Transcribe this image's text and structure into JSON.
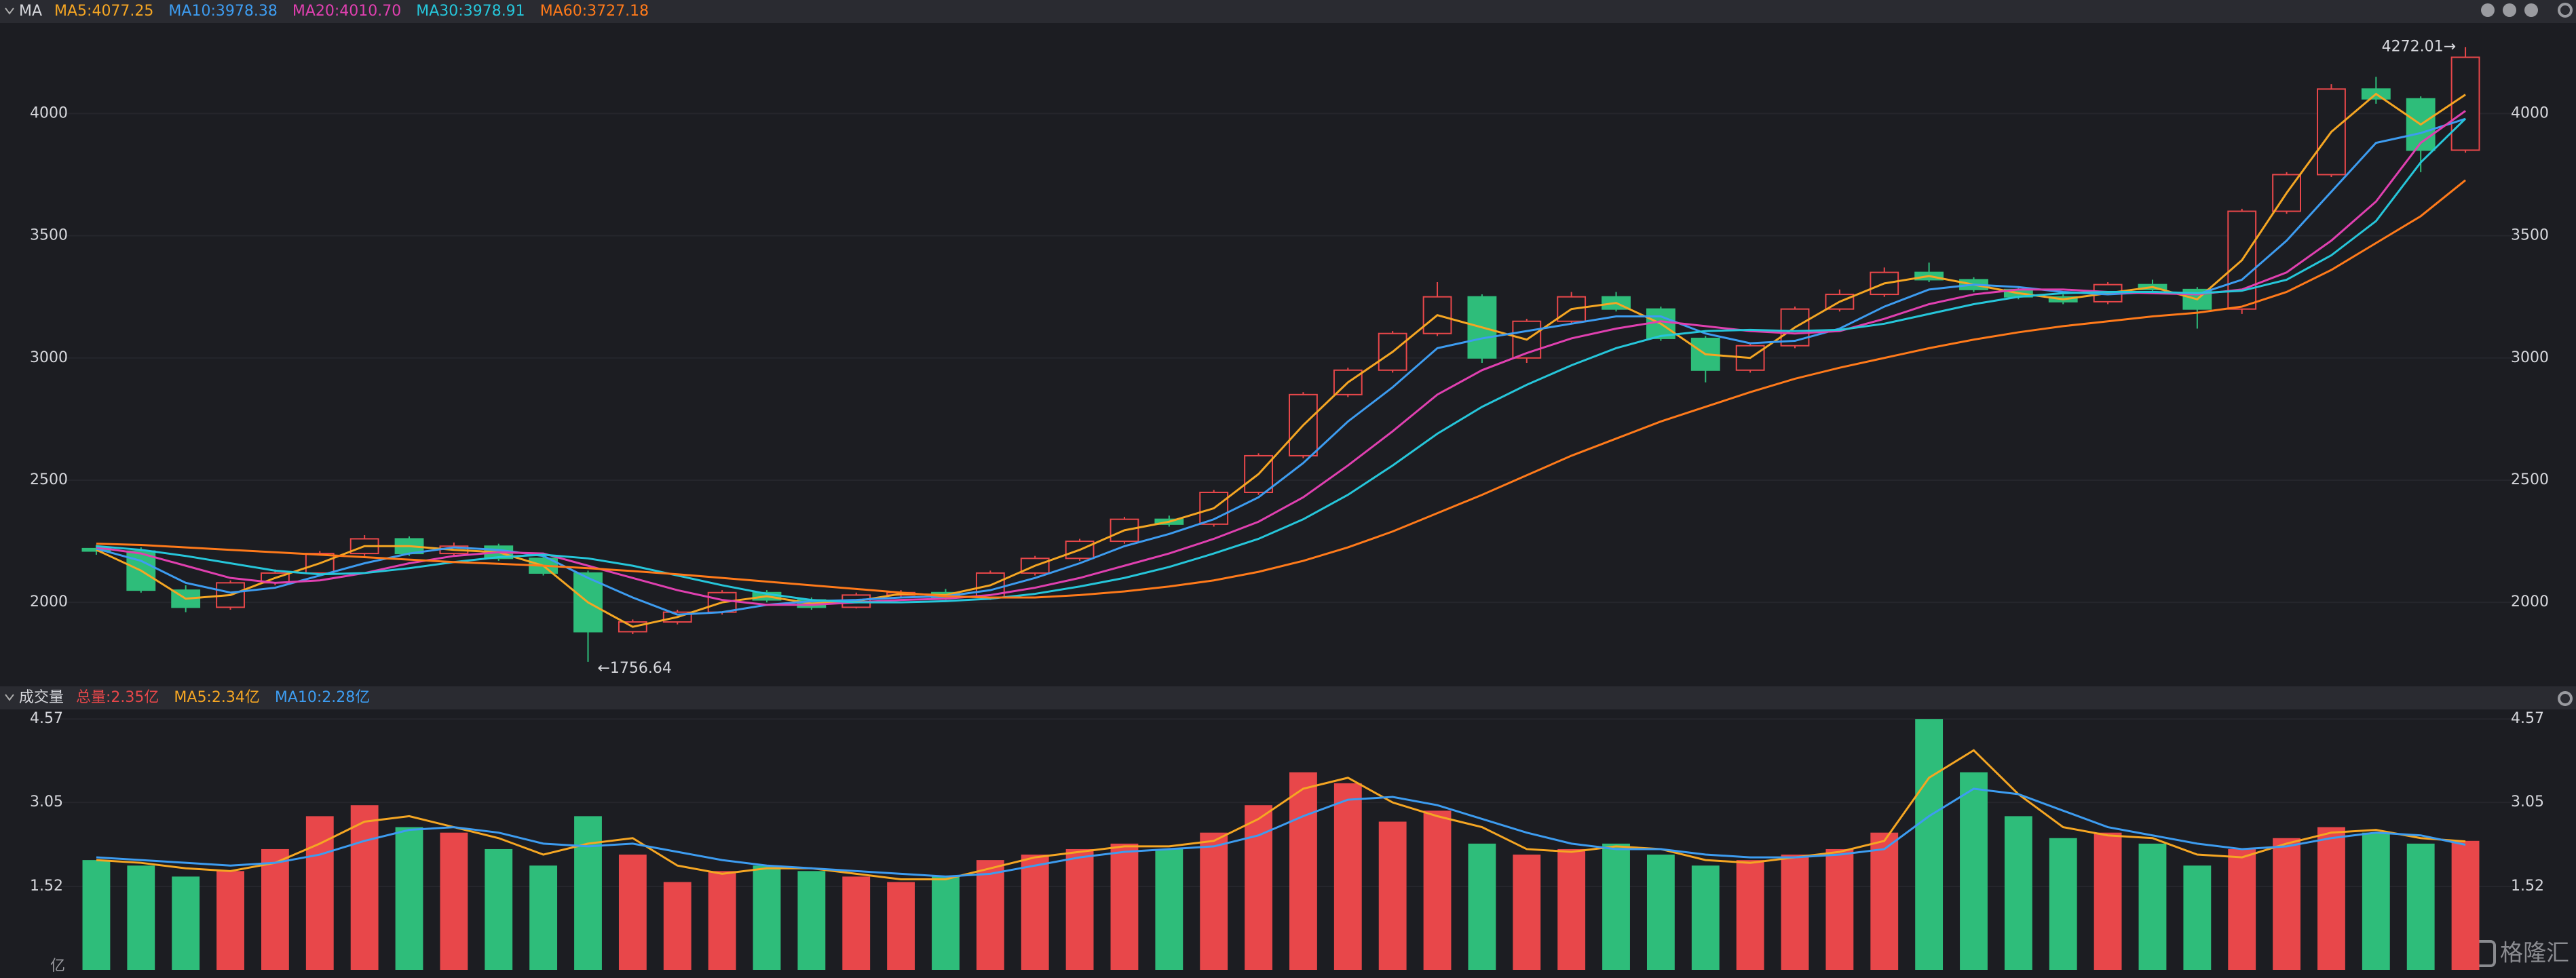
{
  "chart_data": {
    "type": "candlestick",
    "title": "MA",
    "ylim": [
      1662,
      4370
    ],
    "yticks": [
      2000,
      2500,
      3000,
      3500,
      4000
    ],
    "grid": true,
    "up_color": "#e8474a",
    "down_color": "#2ebd7a",
    "candles": {
      "open": [
        2220,
        2210,
        2050,
        1980,
        2080,
        2120,
        2200,
        2260,
        2200,
        2230,
        2180,
        2120,
        1880,
        1920,
        1960,
        2040,
        2010,
        1980,
        2030,
        2040,
        2020,
        2120,
        2180,
        2250,
        2340,
        2320,
        2450,
        2600,
        2850,
        2950,
        3100,
        3250,
        3000,
        3150,
        3250,
        3200,
        3080,
        2950,
        3050,
        3200,
        3260,
        3350,
        3320,
        3280,
        3250,
        3230,
        3300,
        3280,
        3200,
        3600,
        3750,
        4100,
        4060,
        3850
      ],
      "high": [
        2235,
        2225,
        2070,
        2090,
        2135,
        2210,
        2275,
        2270,
        2245,
        2240,
        2190,
        2130,
        1930,
        1970,
        2050,
        2050,
        2020,
        2040,
        2050,
        2055,
        2130,
        2190,
        2260,
        2350,
        2355,
        2460,
        2610,
        2860,
        2960,
        3110,
        3310,
        3260,
        3160,
        3270,
        3270,
        3210,
        3090,
        3060,
        3210,
        3280,
        3370,
        3390,
        3330,
        3290,
        3260,
        3310,
        3320,
        3290,
        3610,
        3760,
        4120,
        4150,
        4070,
        4272.01
      ],
      "low": [
        2195,
        2040,
        1960,
        1970,
        2070,
        2110,
        2190,
        2190,
        2190,
        2170,
        2110,
        1756.64,
        1870,
        1910,
        1950,
        2000,
        1970,
        1975,
        2020,
        2010,
        2010,
        2110,
        2170,
        2240,
        2310,
        2310,
        2440,
        2590,
        2840,
        2940,
        3090,
        2980,
        2980,
        3140,
        3190,
        3070,
        2900,
        2940,
        3040,
        3190,
        3250,
        3310,
        3270,
        3240,
        3220,
        3220,
        3270,
        3120,
        3180,
        3590,
        3740,
        4040,
        3760,
        3840
      ],
      "close": [
        2210,
        2050,
        1980,
        2080,
        2120,
        2200,
        2260,
        2200,
        2230,
        2180,
        2120,
        1880,
        1920,
        1960,
        2040,
        2010,
        1980,
        2030,
        2040,
        2020,
        2120,
        2180,
        2250,
        2340,
        2320,
        2450,
        2600,
        2850,
        2950,
        3100,
        3250,
        3000,
        3150,
        3250,
        3200,
        3080,
        2950,
        3050,
        3200,
        3260,
        3350,
        3320,
        3280,
        3250,
        3230,
        3300,
        3280,
        3200,
        3600,
        3750,
        4100,
        4060,
        3850,
        4230
      ]
    },
    "series": [
      {
        "label": "MA5:4077.25",
        "color": "#f5a623",
        "values": [
          2215,
          2130,
          2015,
          2030,
          2100,
          2160,
          2230,
          2230,
          2215,
          2205,
          2150,
          2000,
          1900,
          1940,
          2000,
          2025,
          1995,
          2005,
          2035,
          2030,
          2070,
          2150,
          2215,
          2295,
          2330,
          2385,
          2525,
          2725,
          2900,
          3025,
          3175,
          3125,
          3075,
          3200,
          3225,
          3140,
          3015,
          3000,
          3125,
          3230,
          3305,
          3335,
          3300,
          3265,
          3240,
          3265,
          3290,
          3240,
          3400,
          3675,
          3925,
          4080,
          3955,
          4077.25
        ]
      },
      {
        "label": "MA10:3978.38",
        "color": "#3d9cf0",
        "values": [
          2220,
          2170,
          2080,
          2040,
          2060,
          2110,
          2160,
          2200,
          2225,
          2215,
          2190,
          2100,
          2020,
          1950,
          1960,
          1990,
          2005,
          2010,
          2020,
          2025,
          2050,
          2100,
          2160,
          2230,
          2280,
          2340,
          2430,
          2570,
          2740,
          2880,
          3040,
          3080,
          3110,
          3140,
          3170,
          3170,
          3100,
          3060,
          3070,
          3120,
          3210,
          3280,
          3300,
          3290,
          3270,
          3260,
          3270,
          3260,
          3320,
          3480,
          3680,
          3880,
          3920,
          3978.38
        ]
      },
      {
        "label": "MA20:4010.70",
        "color": "#e040b0",
        "values": [
          2225,
          2200,
          2150,
          2100,
          2080,
          2090,
          2120,
          2160,
          2190,
          2205,
          2200,
          2150,
          2100,
          2050,
          2010,
          1990,
          1990,
          2000,
          2010,
          2015,
          2030,
          2060,
          2100,
          2150,
          2200,
          2260,
          2330,
          2430,
          2560,
          2700,
          2850,
          2950,
          3020,
          3080,
          3120,
          3150,
          3130,
          3110,
          3100,
          3110,
          3160,
          3220,
          3260,
          3280,
          3280,
          3270,
          3265,
          3260,
          3280,
          3350,
          3480,
          3640,
          3880,
          4010.7
        ]
      },
      {
        "label": "MA30:3978.91",
        "color": "#26c6da",
        "values": [
          2230,
          2215,
          2190,
          2160,
          2130,
          2115,
          2120,
          2140,
          2165,
          2185,
          2195,
          2180,
          2150,
          2110,
          2070,
          2035,
          2010,
          2000,
          2000,
          2005,
          2015,
          2035,
          2065,
          2100,
          2145,
          2200,
          2260,
          2340,
          2440,
          2560,
          2690,
          2800,
          2890,
          2970,
          3040,
          3090,
          3110,
          3115,
          3110,
          3115,
          3140,
          3180,
          3220,
          3250,
          3265,
          3270,
          3270,
          3265,
          3275,
          3320,
          3420,
          3560,
          3800,
          3978.91
        ]
      },
      {
        "label": "MA60:3727.18",
        "color": "#ff7a1a",
        "values": [
          2240,
          2235,
          2225,
          2215,
          2205,
          2195,
          2185,
          2175,
          2165,
          2158,
          2150,
          2140,
          2128,
          2115,
          2100,
          2085,
          2070,
          2055,
          2040,
          2025,
          2020,
          2020,
          2030,
          2045,
          2065,
          2090,
          2125,
          2170,
          2225,
          2290,
          2365,
          2440,
          2520,
          2600,
          2670,
          2740,
          2800,
          2860,
          2915,
          2960,
          3000,
          3040,
          3075,
          3105,
          3130,
          3150,
          3170,
          3185,
          3210,
          3270,
          3360,
          3470,
          3580,
          3727.18
        ]
      }
    ],
    "annotations": [
      {
        "text": "4272.01→"
      },
      {
        "text": "←1756.64"
      }
    ],
    "volume": {
      "title": "成交量",
      "total_label": "总量:2.35亿",
      "total_color": "#e8474a",
      "unit": "亿",
      "ylim": [
        0,
        4.72
      ],
      "yticks": [
        1.52,
        3.05,
        4.57
      ],
      "values": [
        2.0,
        1.9,
        1.7,
        1.8,
        2.2,
        2.8,
        3.0,
        2.6,
        2.5,
        2.2,
        1.9,
        2.8,
        2.1,
        1.6,
        1.8,
        1.9,
        1.8,
        1.7,
        1.6,
        1.7,
        2.0,
        2.1,
        2.2,
        2.3,
        2.2,
        2.5,
        3.0,
        3.6,
        3.4,
        2.7,
        2.9,
        2.3,
        2.1,
        2.2,
        2.3,
        2.1,
        1.9,
        2.0,
        2.1,
        2.2,
        2.5,
        4.57,
        3.6,
        2.8,
        2.4,
        2.5,
        2.3,
        1.9,
        2.2,
        2.4,
        2.6,
        2.5,
        2.3,
        2.35
      ],
      "series": [
        {
          "label": "MA5:2.34亿",
          "color": "#f5a623",
          "values": [
            2.0,
            1.95,
            1.85,
            1.8,
            1.95,
            2.3,
            2.7,
            2.8,
            2.6,
            2.4,
            2.1,
            2.3,
            2.4,
            1.9,
            1.75,
            1.85,
            1.85,
            1.75,
            1.65,
            1.65,
            1.85,
            2.05,
            2.15,
            2.25,
            2.25,
            2.35,
            2.75,
            3.3,
            3.5,
            3.05,
            2.8,
            2.6,
            2.2,
            2.15,
            2.25,
            2.2,
            2.0,
            1.95,
            2.05,
            2.15,
            2.35,
            3.5,
            4.0,
            3.2,
            2.6,
            2.45,
            2.4,
            2.1,
            2.05,
            2.3,
            2.5,
            2.55,
            2.4,
            2.34
          ]
        },
        {
          "label": "MA10:2.28亿",
          "color": "#3d9cf0",
          "values": [
            2.05,
            2.0,
            1.95,
            1.9,
            1.95,
            2.1,
            2.35,
            2.55,
            2.6,
            2.5,
            2.3,
            2.25,
            2.3,
            2.15,
            2.0,
            1.9,
            1.85,
            1.8,
            1.75,
            1.7,
            1.75,
            1.9,
            2.05,
            2.15,
            2.2,
            2.25,
            2.45,
            2.8,
            3.1,
            3.15,
            3.0,
            2.75,
            2.5,
            2.3,
            2.2,
            2.2,
            2.1,
            2.05,
            2.05,
            2.1,
            2.2,
            2.8,
            3.3,
            3.2,
            2.9,
            2.6,
            2.45,
            2.3,
            2.2,
            2.25,
            2.4,
            2.5,
            2.45,
            2.28
          ]
        }
      ]
    },
    "logo": "格隆汇"
  }
}
